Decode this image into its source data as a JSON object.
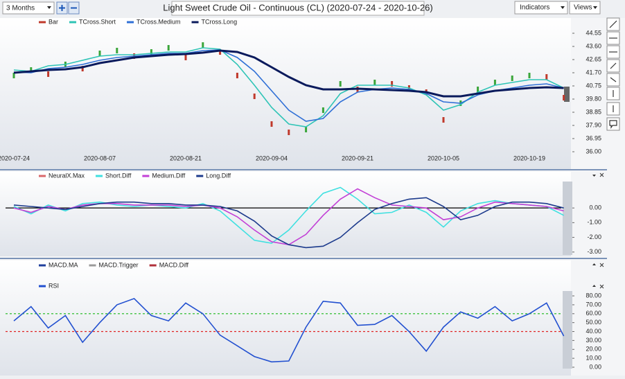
{
  "toolbar": {
    "period": "3 Months",
    "indicators": "Indicators",
    "views": "Views"
  },
  "chart_data": [
    {
      "type": "line",
      "title": "Light Sweet Crude Oil - Continuous (CL) (2020-07-24 - 2020-10-26)",
      "categories": [
        "2020-07-24",
        null,
        null,
        null,
        null,
        "2020-08-07",
        null,
        null,
        null,
        null,
        "2020-08-21",
        null,
        null,
        null,
        null,
        "2020-09-04",
        null,
        null,
        null,
        null,
        "2020-09-21",
        null,
        null,
        null,
        null,
        "2020-10-05",
        null,
        null,
        null,
        null,
        "2020-10-19",
        null,
        null
      ],
      "series": [
        {
          "name": "Bar",
          "color": "#c0392b",
          "values": [
            41.5,
            41.9,
            41.6,
            42.3,
            42.0,
            43.1,
            43.3,
            42.9,
            43.2,
            43.5,
            42.8,
            43.7,
            43.2,
            41.5,
            40.0,
            38.0,
            37.4,
            37.6,
            39.0,
            40.9,
            40.5,
            41.0,
            40.9,
            40.6,
            40.3,
            38.3,
            39.5,
            40.5,
            41.0,
            41.3,
            41.5,
            41.4,
            39.9
          ]
        },
        {
          "name": "TCross.Short",
          "color": "#2ec4b6",
          "values": [
            41.9,
            41.8,
            42.2,
            42.3,
            42.6,
            42.9,
            43.0,
            43.0,
            43.1,
            43.2,
            43.2,
            43.5,
            43.4,
            42.3,
            40.8,
            39.2,
            38.0,
            37.8,
            38.6,
            40.2,
            40.8,
            40.8,
            40.8,
            40.6,
            40.1,
            39.0,
            39.4,
            40.3,
            40.8,
            41.0,
            41.2,
            41.2,
            40.6
          ]
        },
        {
          "name": "TCross.Medium",
          "color": "#2f6fd6",
          "values": [
            41.75,
            41.7,
            42.0,
            42.1,
            42.3,
            42.6,
            42.8,
            42.9,
            43.0,
            43.1,
            43.1,
            43.3,
            43.35,
            42.8,
            41.8,
            40.4,
            39.0,
            38.2,
            38.4,
            39.6,
            40.3,
            40.5,
            40.6,
            40.5,
            40.2,
            39.6,
            39.5,
            40.1,
            40.4,
            40.6,
            40.8,
            40.9,
            40.6
          ]
        },
        {
          "name": "TCross.Long",
          "color": "#0a1a5c",
          "values": [
            41.7,
            41.8,
            41.9,
            41.95,
            42.1,
            42.4,
            42.6,
            42.8,
            42.9,
            43.0,
            43.05,
            43.15,
            43.3,
            43.2,
            42.8,
            42.1,
            41.4,
            40.8,
            40.5,
            40.5,
            40.55,
            40.5,
            40.45,
            40.4,
            40.3,
            40.0,
            40.0,
            40.2,
            40.4,
            40.5,
            40.6,
            40.65,
            40.6
          ]
        }
      ],
      "ylim": [
        35.95,
        45.3
      ],
      "yticks": [
        {
          "value": 36,
          "label": "36.00"
        },
        {
          "value": 36.95,
          "label": "36.95"
        },
        {
          "value": 37.9,
          "label": "37.90"
        },
        {
          "value": 38.85,
          "label": "38.85"
        },
        {
          "value": 39.8,
          "label": "39.80"
        },
        {
          "value": 40.75,
          "label": "40.75"
        },
        {
          "value": 41.7,
          "label": "41.70"
        },
        {
          "value": 42.65,
          "label": "42.65"
        },
        {
          "value": 43.6,
          "label": "43.60"
        },
        {
          "value": 44.55,
          "label": "44.55"
        }
      ]
    },
    {
      "type": "line",
      "series": [
        {
          "name": "NeuralX.Max",
          "color": "#d9676a"
        },
        {
          "name": "Short.Diff",
          "color": "#3fe0e0",
          "values": [
            0.1,
            -0.4,
            0.2,
            -0.2,
            0.3,
            0.4,
            0.2,
            0.1,
            0.2,
            0.1,
            0.0,
            0.3,
            -0.2,
            -1.2,
            -2.2,
            -2.4,
            -1.5,
            -0.2,
            1.0,
            1.4,
            0.6,
            -0.4,
            -0.3,
            0.2,
            -0.3,
            -1.3,
            -0.2,
            0.3,
            0.5,
            0.3,
            0.2,
            0.1,
            -0.5
          ]
        },
        {
          "name": "Medium.Diff",
          "color": "#c23fd6",
          "values": [
            0.0,
            -0.3,
            0.1,
            -0.1,
            0.2,
            0.3,
            0.3,
            0.2,
            0.2,
            0.2,
            0.1,
            0.2,
            0.0,
            -0.6,
            -1.5,
            -2.3,
            -2.5,
            -1.8,
            -0.5,
            0.6,
            1.3,
            0.7,
            0.2,
            0.1,
            0.0,
            -0.8,
            -0.6,
            0.0,
            0.4,
            0.3,
            0.2,
            0.1,
            -0.2
          ]
        },
        {
          "name": "Long.Diff",
          "color": "#1c3a8c",
          "values": [
            0.2,
            0.1,
            0.0,
            -0.1,
            0.1,
            0.3,
            0.4,
            0.4,
            0.3,
            0.3,
            0.2,
            0.2,
            0.1,
            -0.2,
            -0.9,
            -1.9,
            -2.5,
            -2.7,
            -2.6,
            -2.0,
            -1.0,
            -0.1,
            0.3,
            0.6,
            0.7,
            0.1,
            -0.8,
            -0.5,
            0.1,
            0.4,
            0.4,
            0.3,
            0.0
          ]
        }
      ],
      "hlines": [
        {
          "value": 0,
          "color": "#000000"
        }
      ],
      "ylim": [
        -3.2,
        1.8
      ],
      "yticks": [
        {
          "value": 0,
          "label": "0.00"
        },
        {
          "value": -1,
          "label": "-1.00"
        },
        {
          "value": -2,
          "label": "-2.00"
        },
        {
          "value": -3,
          "label": "-3.00"
        }
      ]
    },
    {
      "type": "line",
      "series": [
        {
          "name": "MACD.MA",
          "color": "#1f3f9c"
        },
        {
          "name": "MACD.Trigger",
          "color": "#9a9a9a"
        },
        {
          "name": "MACD.Diff",
          "color": "#b0303a"
        },
        {
          "name": "RSI",
          "color": "#2250d0",
          "values": [
            52,
            68,
            44,
            58,
            28,
            50,
            70,
            77,
            58,
            52,
            72,
            60,
            36,
            24,
            12,
            6,
            7,
            45,
            74,
            72,
            47,
            48,
            58,
            40,
            18,
            45,
            62,
            55,
            68,
            52,
            60,
            72,
            35
          ]
        }
      ],
      "hlines": [
        {
          "value": 60,
          "color": "#2ebd2e"
        },
        {
          "value": 40,
          "color": "#e02020"
        }
      ],
      "ylim": [
        0,
        85
      ],
      "yticks": [
        {
          "value": 0,
          "label": "0.00"
        },
        {
          "value": 10,
          "label": "10.00"
        },
        {
          "value": 20,
          "label": "20.00"
        },
        {
          "value": 30,
          "label": "30.00"
        },
        {
          "value": 40,
          "label": "40.00"
        },
        {
          "value": 50,
          "label": "50.00"
        },
        {
          "value": 60,
          "label": "60.00"
        },
        {
          "value": 70,
          "label": "70.00"
        },
        {
          "value": 80,
          "label": "80.00"
        }
      ]
    }
  ]
}
